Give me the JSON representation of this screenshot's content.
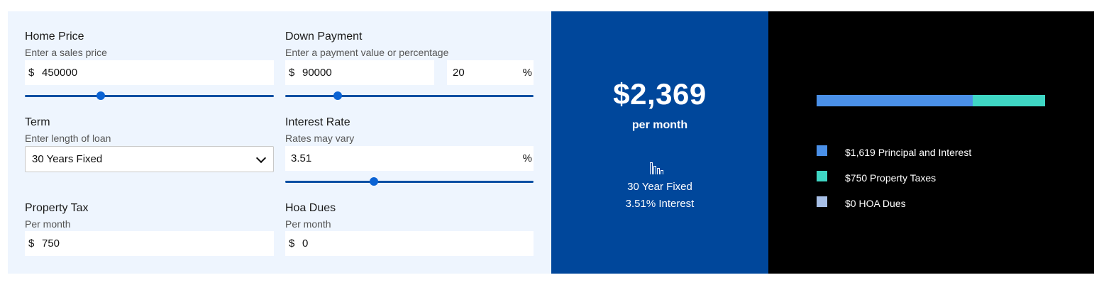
{
  "form": {
    "home_price": {
      "label": "Home Price",
      "hint": "Enter a sales price",
      "prefix": "$",
      "value": "450000",
      "slider_fraction": 0.305
    },
    "down_payment": {
      "label": "Down Payment",
      "hint": "Enter a payment value or percentage",
      "prefix": "$",
      "value": "90000",
      "percent_value": "20",
      "percent_suffix": "%",
      "slider_fraction": 0.21
    },
    "term": {
      "label": "Term",
      "hint": "Enter length of loan",
      "selected": "30 Years Fixed"
    },
    "interest_rate": {
      "label": "Interest Rate",
      "hint": "Rates may vary",
      "value": "3.51",
      "suffix": "%",
      "slider_fraction": 0.356
    },
    "property_tax": {
      "label": "Property Tax",
      "hint": "Per month",
      "prefix": "$",
      "value": "750"
    },
    "hoa_dues": {
      "label": "Hoa Dues",
      "hint": "Per month",
      "prefix": "$",
      "value": "0"
    }
  },
  "result": {
    "amount": "$2,369",
    "period": "per month",
    "icon": "bar-chart-icon",
    "loan_type": "30 Year Fixed",
    "loan_interest": "3.51% Interest"
  },
  "breakdown": {
    "items": [
      {
        "label": "$1,619 Principal and Interest",
        "amount": 1619,
        "color": "#4a90e8"
      },
      {
        "label": "$750 Property Taxes",
        "amount": 750,
        "color": "#3fd6c4"
      },
      {
        "label": "$0 HOA Dues",
        "amount": 0,
        "color": "#a7bfe6"
      }
    ]
  }
}
